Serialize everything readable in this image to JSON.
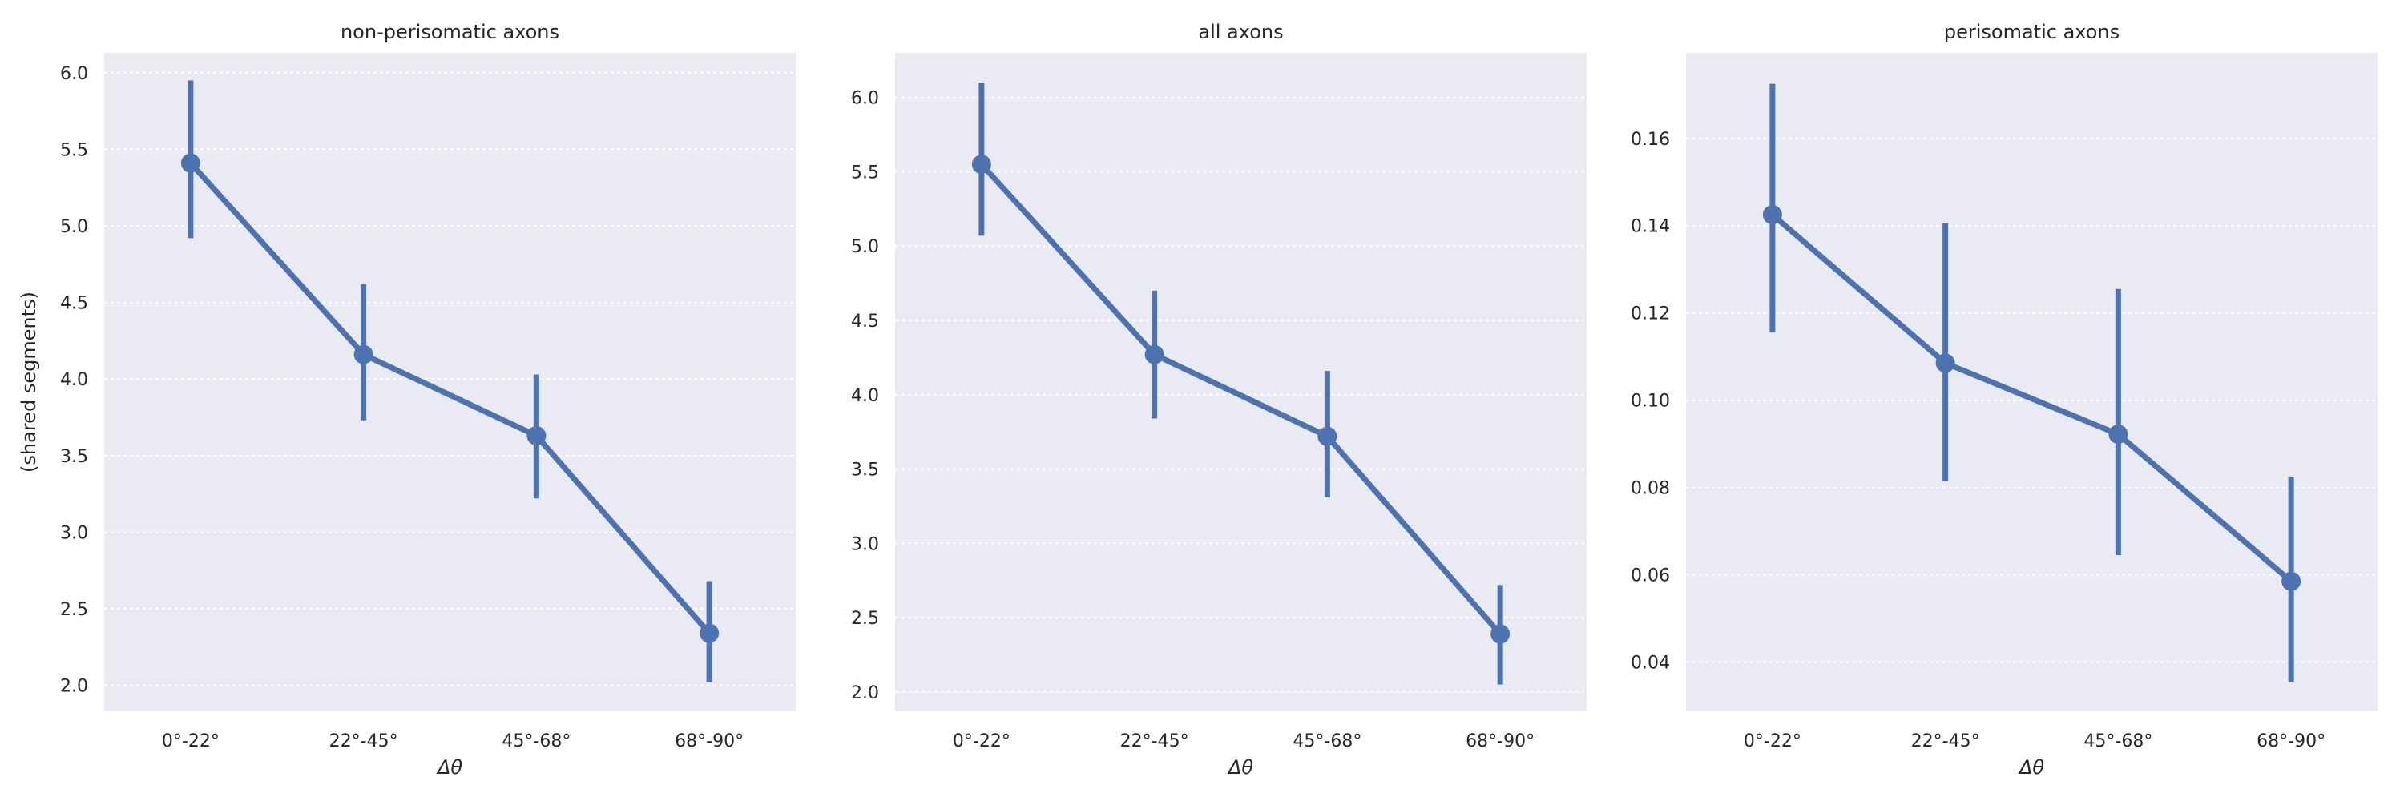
{
  "colors": {
    "series": "#4c72b0",
    "panel_background": "#eaeaf2",
    "grid": "#ffffff"
  },
  "chart_data": [
    {
      "type": "line",
      "title": "non-perisomatic axons",
      "xlabel": "Δθ",
      "ylabel": "(shared segments)",
      "categories": [
        "0°-22°",
        "22°-45°",
        "45°-68°",
        "68°-90°"
      ],
      "values": [
        5.41,
        4.16,
        3.63,
        2.34
      ],
      "error_low": [
        4.92,
        3.73,
        3.22,
        2.02
      ],
      "error_high": [
        5.95,
        4.62,
        4.03,
        2.68
      ],
      "ylim": [
        1.83,
        6.13
      ],
      "yticks": [
        2.0,
        2.5,
        3.0,
        3.5,
        4.0,
        4.5,
        5.0,
        5.5,
        6.0
      ],
      "ytick_labels": [
        "2.0",
        "2.5",
        "3.0",
        "3.5",
        "4.0",
        "4.5",
        "5.0",
        "5.5",
        "6.0"
      ],
      "grid": true
    },
    {
      "type": "line",
      "title": "all axons",
      "xlabel": "Δθ",
      "ylabel": "",
      "categories": [
        "0°-22°",
        "22°-45°",
        "45°-68°",
        "68°-90°"
      ],
      "values": [
        5.55,
        4.27,
        3.72,
        2.39
      ],
      "error_low": [
        5.07,
        3.84,
        3.31,
        2.05
      ],
      "error_high": [
        6.1,
        4.7,
        4.16,
        2.72
      ],
      "ylim": [
        1.87,
        6.3
      ],
      "yticks": [
        2.0,
        2.5,
        3.0,
        3.5,
        4.0,
        4.5,
        5.0,
        5.5,
        6.0
      ],
      "ytick_labels": [
        "2.0",
        "2.5",
        "3.0",
        "3.5",
        "4.0",
        "4.5",
        "5.0",
        "5.5",
        "6.0"
      ],
      "grid": true
    },
    {
      "type": "line",
      "title": "perisomatic axons",
      "xlabel": "Δθ",
      "ylabel": "",
      "categories": [
        "0°-22°",
        "22°-45°",
        "45°-68°",
        "68°-90°"
      ],
      "values": [
        0.1425,
        0.1085,
        0.0922,
        0.0585
      ],
      "error_low": [
        0.1155,
        0.0815,
        0.0645,
        0.0355
      ],
      "error_high": [
        0.1725,
        0.1405,
        0.1255,
        0.0825
      ],
      "ylim": [
        0.0287,
        0.1796
      ],
      "yticks": [
        0.04,
        0.06,
        0.08,
        0.1,
        0.12,
        0.14,
        0.16
      ],
      "ytick_labels": [
        "0.04",
        "0.06",
        "0.08",
        "0.10",
        "0.12",
        "0.14",
        "0.16"
      ],
      "grid": true
    }
  ]
}
